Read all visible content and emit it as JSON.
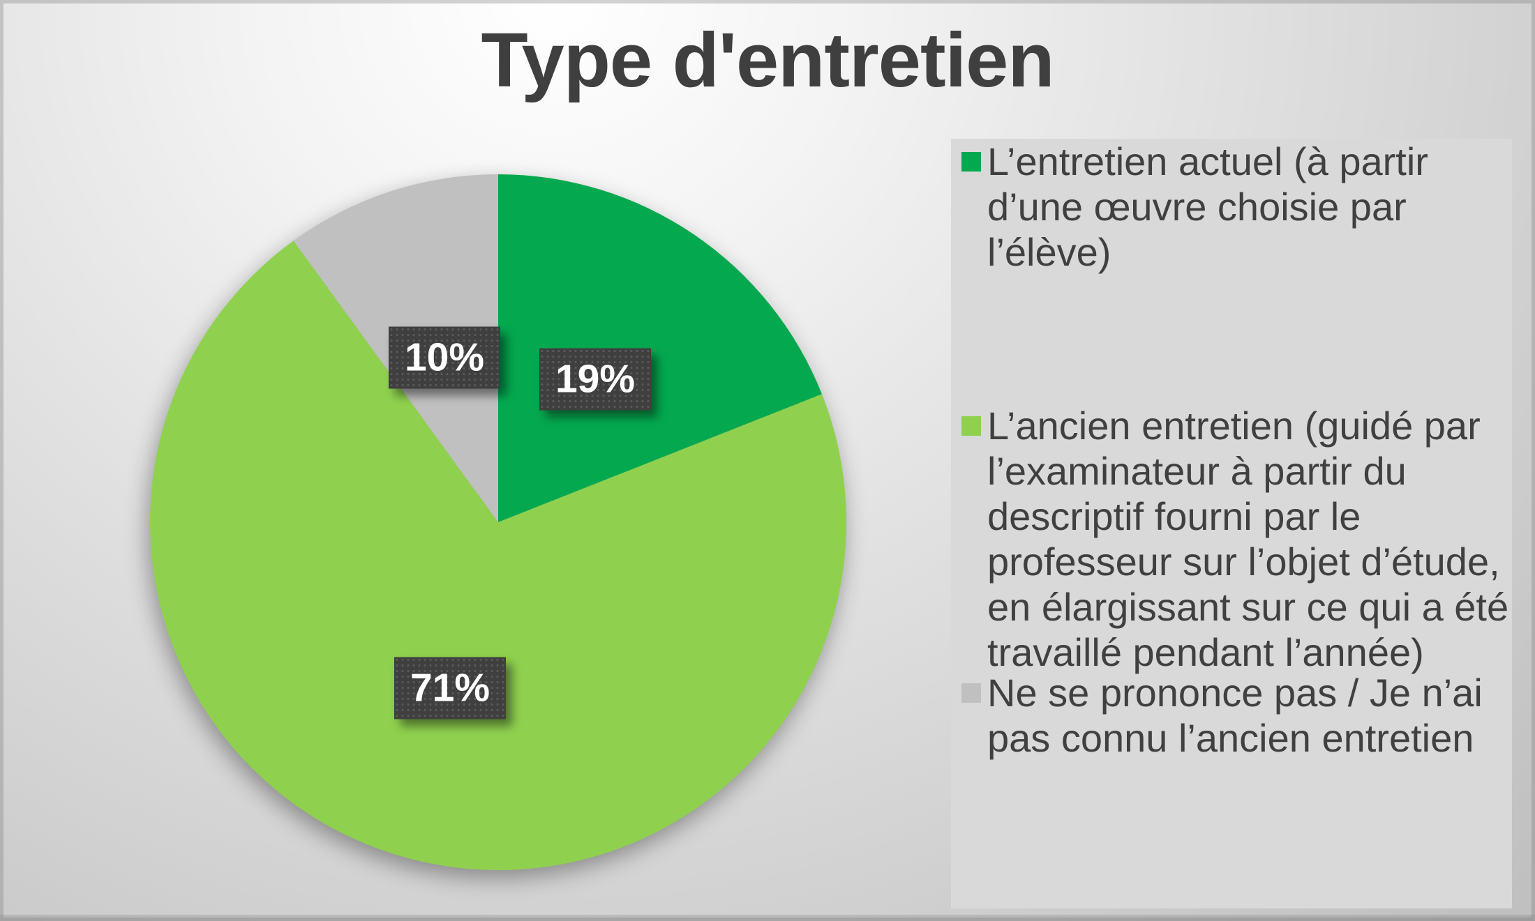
{
  "title": "Type d'entretien",
  "chart_data": {
    "type": "pie",
    "title": "Type d'entretien",
    "labels": [
      "L’entretien actuel (à partir d’une œuvre choisie par l’élève)",
      "L’ancien entretien (guidé par l’examinateur à partir du descriptif fourni par le professeur sur l’objet d’étude, en élargissant sur ce qui a été travaillé pendant l’année)",
      "Ne se prononce pas / Je n’ai pas connu l’ancien entretien"
    ],
    "values": [
      19,
      71,
      10
    ],
    "unit": "%",
    "data_labels": [
      "19%",
      "71%",
      "10%"
    ],
    "colors": [
      "#04a94f",
      "#8fd14f",
      "#c0c0c0"
    ],
    "legend_position": "right",
    "start_angle_deg": 0,
    "direction": "clockwise",
    "label_box_color": "#3f3f3f",
    "label_text_color": "#ffffff",
    "title_color": "#3f3f3f"
  },
  "legend": {
    "items": [
      {
        "label": "L’entretien actuel (à partir d’une œuvre choisie par l’élève)",
        "color": "#04a94f"
      },
      {
        "label": "L’ancien entretien (guidé par l’examinateur à partir du descriptif fourni par le professeur sur l’objet d’étude, en élargissant sur ce qui a été travaillé pendant l’année)",
        "color": "#8fd14f"
      },
      {
        "label": "Ne se prononce pas / Je n’ai pas connu l’ancien entretien",
        "color": "#c0c0c0"
      }
    ]
  }
}
